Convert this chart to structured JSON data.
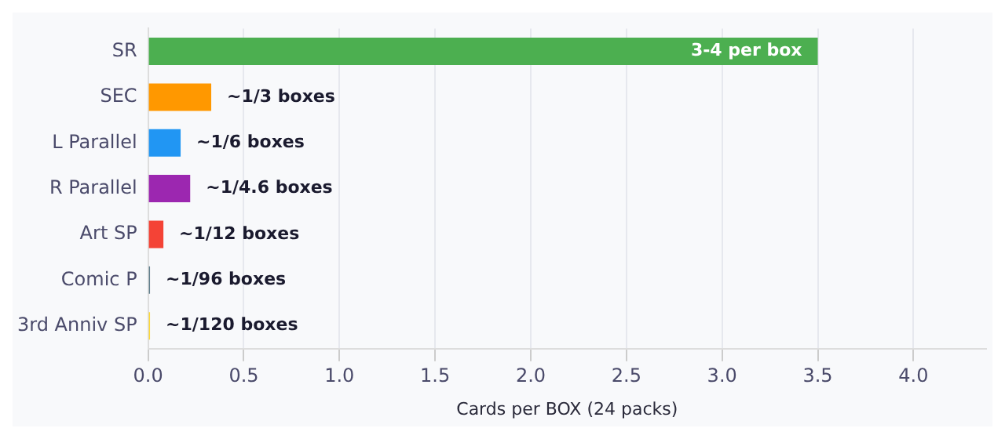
{
  "chart_data": {
    "type": "bar",
    "orientation": "horizontal",
    "xlabel": "Cards per BOX (24 packs)",
    "categories": [
      "SR",
      "SEC",
      "L Parallel",
      "R Parallel",
      "Art SP",
      "Comic P",
      "3rd Anniv SP"
    ],
    "values": [
      3.5,
      0.33,
      0.17,
      0.22,
      0.08,
      0.01,
      0.01
    ],
    "colors": [
      "#4caf50",
      "#ff9800",
      "#2196f3",
      "#9c27b0",
      "#f44336",
      "#607d8b",
      "#fdd835"
    ],
    "value_labels": [
      "3-4 per box",
      "~1/3 boxes",
      "~1/6 boxes",
      "~1/4.6 boxes",
      "~1/12 boxes",
      "~1/96 boxes",
      "~1/120 boxes"
    ],
    "xlim": [
      0,
      4.38
    ],
    "xticks": [
      {
        "value": 0,
        "label": "0.0"
      },
      0.5,
      {
        "value": 1,
        "label": "1.0"
      },
      1.5,
      {
        "value": 2,
        "label": "2.0"
      },
      2.5,
      {
        "value": 3,
        "label": "3.0"
      },
      3.5,
      {
        "value": 4,
        "label": "4.0"
      }
    ],
    "grid": "x"
  }
}
